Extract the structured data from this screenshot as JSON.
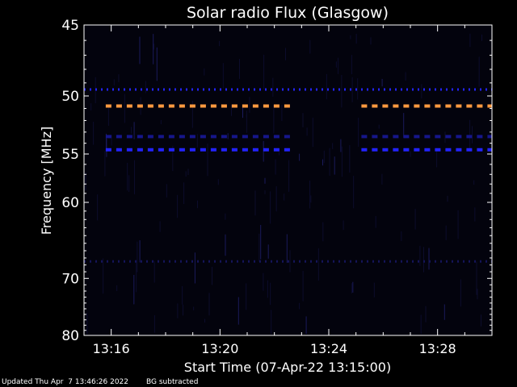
{
  "chart_data": {
    "type": "heatmap",
    "title": "Solar radio Flux (Glasgow)",
    "xlabel": "Start Time (07-Apr-22 13:15:00)",
    "ylabel": "Frequency [MHz]",
    "x_tick_labels": [
      "13:16",
      "13:20",
      "13:24",
      "13:28"
    ],
    "x_tick_minutes": [
      1,
      5,
      9,
      13
    ],
    "y_tick_labels": [
      "45",
      "50",
      "55",
      "60",
      "70",
      "80"
    ],
    "y_tick_values": [
      45,
      50,
      55,
      60,
      70,
      80
    ],
    "y_scale": "reciprocal",
    "xlim_minutes": [
      0,
      15
    ],
    "ylim_mhz": [
      45,
      80
    ],
    "background_color": "#03030d",
    "bands": [
      {
        "freq_mhz": 49.5,
        "color": "#2323ff",
        "segments": [
          [
            0,
            15
          ]
        ],
        "style": "dotted"
      },
      {
        "freq_mhz": 50.8,
        "color": "#ff9a40",
        "segments": [
          [
            0.8,
            7.6
          ],
          [
            10.2,
            15
          ]
        ],
        "style": "dashed"
      },
      {
        "freq_mhz": 53.4,
        "color": "#16168a",
        "segments": [
          [
            0.8,
            7.6
          ],
          [
            10.2,
            15
          ]
        ],
        "style": "dashed"
      },
      {
        "freq_mhz": 54.6,
        "color": "#2323ff",
        "segments": [
          [
            0.8,
            7.6
          ],
          [
            10.2,
            15
          ]
        ],
        "style": "dashed"
      },
      {
        "freq_mhz": 67.5,
        "color": "#14145a",
        "segments": [
          [
            0,
            15
          ]
        ],
        "style": "dotted"
      }
    ],
    "colors": {
      "axes": "#ffffff",
      "text": "#ffffff"
    }
  },
  "footer": {
    "updated": "Updated Thu Apr  7 13:46:26 2022",
    "note": "BG subtracted"
  }
}
